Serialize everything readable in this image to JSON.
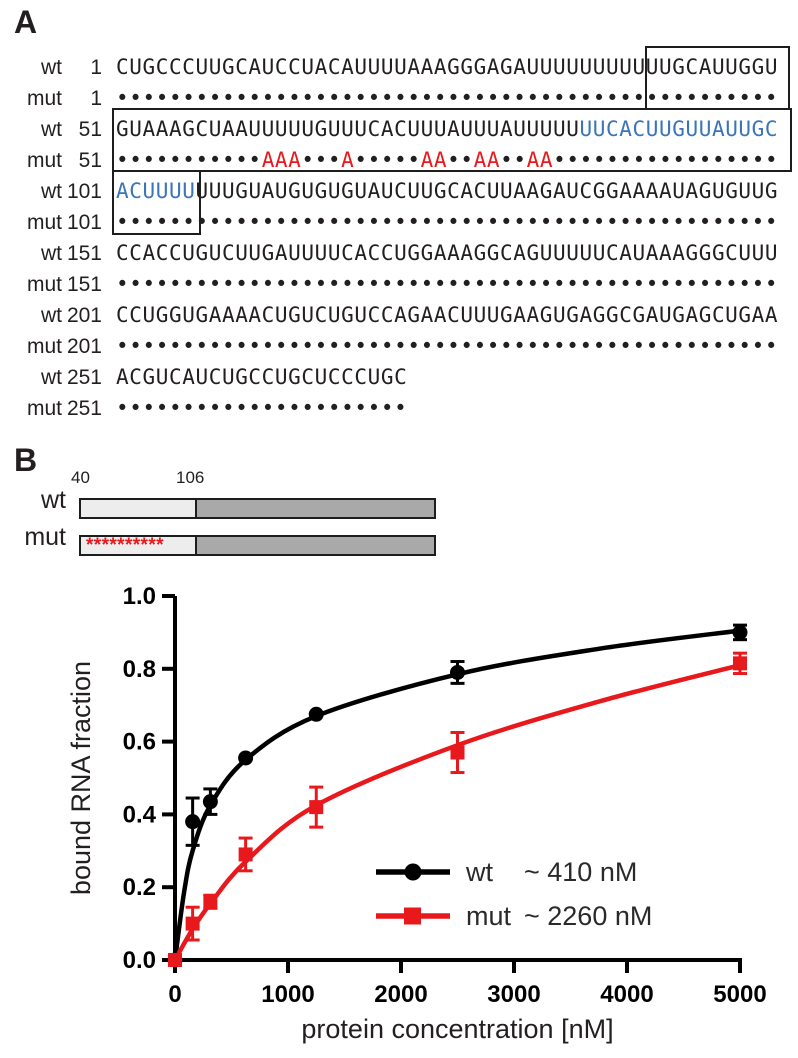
{
  "panel_a": {
    "label": "A",
    "colors": {
      "base": "#231f20",
      "blue": "#3b74b8",
      "red": "#e8191d"
    },
    "rows": [
      {
        "name": "wt",
        "num": "1",
        "segments": [
          {
            "text": "CUGCCCUUGCAUCCUACAUUUUAAAGGGAGAUUUUUUUUUUUGCAUUGGU"
          }
        ]
      },
      {
        "name": "mut",
        "num": "1",
        "segments": [
          {
            "dots": 50
          }
        ]
      },
      {
        "name": "wt",
        "num": "51",
        "segments": [
          {
            "text": "GUAAAGCUAAUUUUUGUUUCACUUUAUUUAUUUUU"
          },
          {
            "text": "UUCACUUGUUAUUGC",
            "color": "blue"
          }
        ]
      },
      {
        "name": "mut",
        "num": "51",
        "segments": [
          {
            "dots": 11
          },
          {
            "text": "AAA",
            "color": "red"
          },
          {
            "dots": 3
          },
          {
            "text": "A",
            "color": "red"
          },
          {
            "dots": 5
          },
          {
            "text": "AA",
            "color": "red"
          },
          {
            "dots": 2
          },
          {
            "text": "AA",
            "color": "red"
          },
          {
            "dots": 2
          },
          {
            "text": "AA",
            "color": "red"
          },
          {
            "dots": 17
          }
        ]
      },
      {
        "name": "wt",
        "num": "101",
        "segments": [
          {
            "text": "ACUUUU",
            "color": "blue"
          },
          {
            "text": "UUUGUAUGUGUGUAUCUUGCACUUAAGAUCGGAAAAUAGUGUUG"
          }
        ]
      },
      {
        "name": "mut",
        "num": "101",
        "segments": [
          {
            "dots": 50
          }
        ]
      },
      {
        "name": "wt",
        "num": "151",
        "segments": [
          {
            "text": "CCACCUGUCUUGAUUUUCACCUGGAAAGGCAGUUUUUCAUAAAGGGCUUU"
          }
        ]
      },
      {
        "name": "mut",
        "num": "151",
        "segments": [
          {
            "dots": 50
          }
        ]
      },
      {
        "name": "wt",
        "num": "201",
        "segments": [
          {
            "text": "CCUGGUGAAAACUGUCUGUCCAGAACUUUGAAGUGAGGCGAUGAGCUGAA"
          }
        ]
      },
      {
        "name": "mut",
        "num": "201",
        "segments": [
          {
            "dots": 50
          }
        ]
      },
      {
        "name": "wt",
        "num": "251",
        "segments": [
          {
            "text": "ACGUCAUCUGCCUGCUCCCUGC"
          }
        ]
      },
      {
        "name": "mut",
        "num": "251",
        "segments": [
          {
            "dots": 22
          }
        ]
      }
    ]
  },
  "panel_b": {
    "label": "B",
    "start_label": "40",
    "boundary_label": "106",
    "constructs": [
      {
        "name": "wt",
        "marks": ""
      },
      {
        "name": "mut",
        "marks": "**********"
      }
    ]
  },
  "chart_data": {
    "type": "scatter",
    "title": "",
    "xlabel": "protein concentration [nM]",
    "ylabel": "bound RNA fraction",
    "xlim": [
      0,
      5000
    ],
    "ylim": [
      0,
      1.0
    ],
    "xticks": [
      0,
      1000,
      2000,
      3000,
      4000,
      5000
    ],
    "yticks": [
      "0.0",
      "0.2",
      "0.4",
      "0.6",
      "0.8",
      "1.0"
    ],
    "grid": false,
    "legend_position": "inside lower right",
    "x": [
      0,
      156,
      313,
      625,
      1250,
      2500,
      5000
    ],
    "series": [
      {
        "name": "wt",
        "kd_label": "~ 410 nM",
        "kd_nm": 410,
        "color": "#000000",
        "marker": "circle",
        "values": [
          0,
          0.38,
          0.435,
          0.555,
          0.675,
          0.79,
          0.9
        ],
        "errors": [
          0,
          0.065,
          0.035,
          0,
          0,
          0.03,
          0.02
        ],
        "curve": [
          [
            0,
            0
          ],
          [
            80,
            0.185
          ],
          [
            156,
            0.3
          ],
          [
            313,
            0.425
          ],
          [
            625,
            0.55
          ],
          [
            1250,
            0.67
          ],
          [
            2500,
            0.785
          ],
          [
            3750,
            0.855
          ],
          [
            5000,
            0.905
          ]
        ]
      },
      {
        "name": "mut",
        "kd_label": "~ 2260 nM",
        "kd_nm": 2260,
        "color": "#e8191d",
        "marker": "square",
        "values": [
          0,
          0.1,
          0.16,
          0.29,
          0.42,
          0.57,
          0.815
        ],
        "errors": [
          0,
          0.045,
          0.018,
          0.045,
          0.055,
          0.055,
          0.028
        ],
        "curve": [
          [
            0,
            0
          ],
          [
            156,
            0.085
          ],
          [
            313,
            0.155
          ],
          [
            625,
            0.27
          ],
          [
            1250,
            0.425
          ],
          [
            2500,
            0.59
          ],
          [
            3750,
            0.71
          ],
          [
            5000,
            0.81
          ]
        ]
      }
    ]
  }
}
